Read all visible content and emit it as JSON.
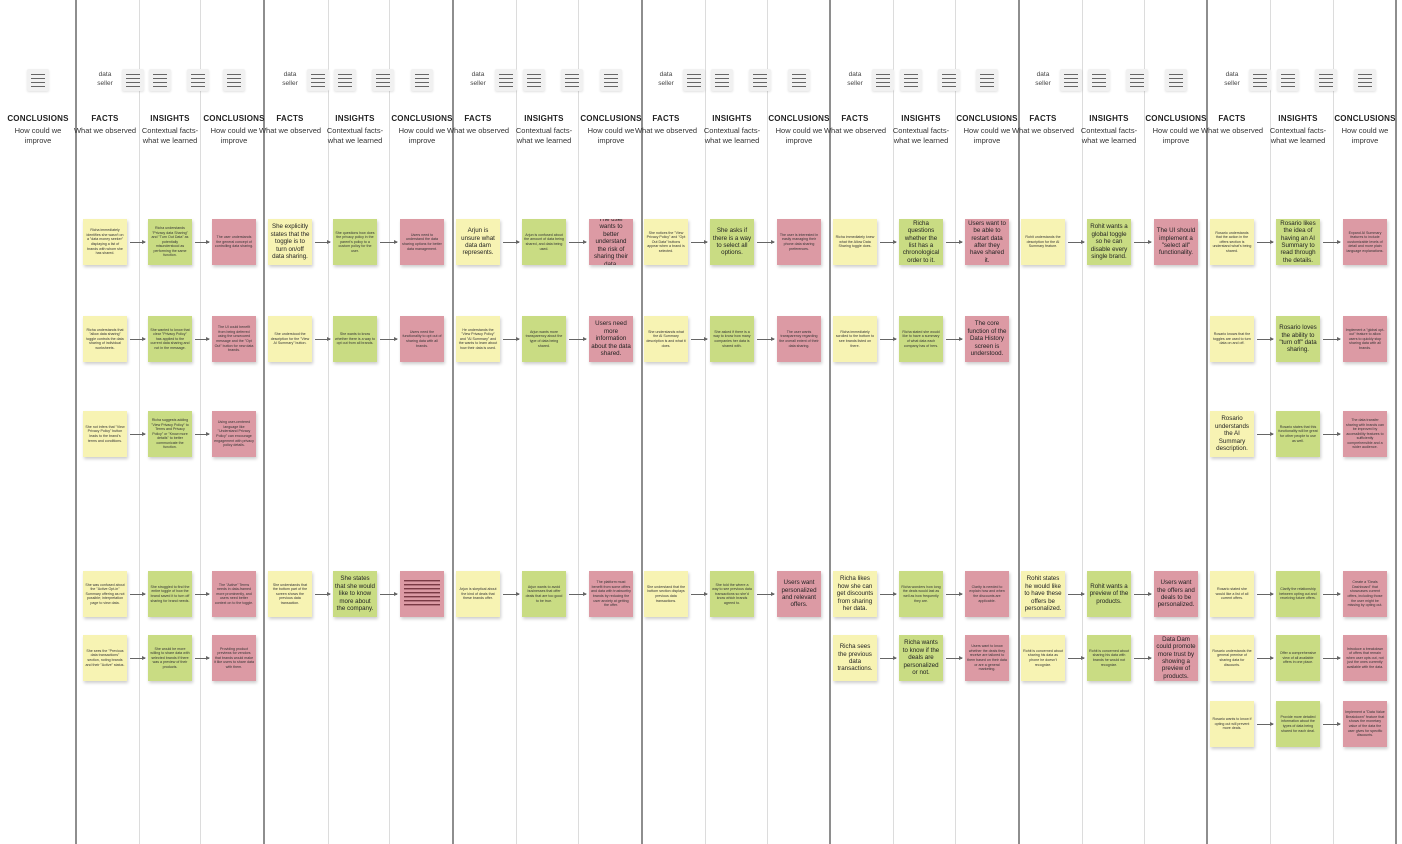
{
  "board": {
    "title": ""
  },
  "columns": [
    {
      "label": "CONCLUSIONS",
      "sub": "How could we improve"
    },
    {
      "label": "FACTS",
      "sub": "What we observed"
    },
    {
      "label": "INSIGHTS",
      "sub": "Contextual facts- what we learned"
    },
    {
      "label": "CONCLUSIONS",
      "sub": "How could we improve"
    },
    {
      "label": "FACTS",
      "sub": "What we observed"
    },
    {
      "label": "INSIGHTS",
      "sub": "Contextual facts- what we learned"
    },
    {
      "label": "CONCLUSIONS",
      "sub": "How could we improve"
    },
    {
      "label": "FACTS",
      "sub": "What we observed"
    },
    {
      "label": "INSIGHTS",
      "sub": "Contextual facts- what we learned"
    },
    {
      "label": "CONCLUSIONS",
      "sub": "How could we improve"
    },
    {
      "label": "FACTS",
      "sub": "What we observed"
    },
    {
      "label": "INSIGHTS",
      "sub": "Contextual facts- what we learned"
    },
    {
      "label": "CONCLUSIONS",
      "sub": "How could we improve"
    },
    {
      "label": "FACTS",
      "sub": "What we observed"
    },
    {
      "label": "INSIGHTS",
      "sub": "Contextual facts- what we learned"
    },
    {
      "label": "CONCLUSIONS",
      "sub": "How could we improve"
    },
    {
      "label": "FACTS",
      "sub": "What we observed"
    },
    {
      "label": "INSIGHTS",
      "sub": "Contextual facts- what we learned"
    },
    {
      "label": "CONCLUSIONS",
      "sub": "How could we improve"
    },
    {
      "label": "FACTS",
      "sub": "What we observed"
    },
    {
      "label": "INSIGHTS",
      "sub": "Contextual facts- what we learned"
    },
    {
      "label": "CONCLUSIONS",
      "sub": "How could we improve"
    }
  ],
  "persona_tag": "data seller",
  "sections": [
    {
      "notes": []
    },
    {
      "notes": [
        {
          "col": 1,
          "row": 0,
          "type": "fact",
          "text": "Richa immediately identifies she wasn't on a \"data money seeker\" displaying a list of brands with whom she has shared."
        },
        {
          "col": 2,
          "row": 0,
          "type": "insight",
          "text": "Richa understands \"Privacy data Sharing\" and \"Turn Out Data\" as potentially misunderstood as performing the same function."
        },
        {
          "col": 3,
          "row": 0,
          "type": "conclusion",
          "text": "The user understands the general concept of controlling data sharing."
        },
        {
          "col": 1,
          "row": 1,
          "type": "fact",
          "text": "Richa understands that \"allow data sharing\" toggle controls the data sharing of individual worksheets."
        },
        {
          "col": 2,
          "row": 1,
          "type": "insight",
          "text": "She wanted to know that clear \"Privacy Policy\" has applied to the current data sharing and not in the message."
        },
        {
          "col": 3,
          "row": 1,
          "type": "conclusion",
          "text": "The UI could benefit from being deferred using the unsecured message and the \"Opt Out\" button for new data brands."
        },
        {
          "col": 1,
          "row": 2,
          "type": "fact",
          "text": "She not infers that \"View Privacy Policy\" button leads to the brand's terms and conditions."
        },
        {
          "col": 2,
          "row": 2,
          "type": "insight",
          "text": "Richa suggests adding \"View Privacy Policy\" to Terms and Privacy Policy\" or \"Know more details\" to better communicate the function."
        },
        {
          "col": 3,
          "row": 2,
          "type": "conclusion",
          "text": "Using user-centered language like \"Understand Privacy Policy\" can encourage engagement with privacy policy details."
        },
        {
          "col": 1,
          "row": 3,
          "type": "fact",
          "text": "She was confused about the \"Active Opt-in\" Summary offering as not possible; interpretation page to view data."
        },
        {
          "col": 2,
          "row": 3,
          "type": "insight",
          "text": "She struggled to find the entire toggle of how the brand saved it to turn off sharing for brand needs."
        },
        {
          "col": 3,
          "row": 3,
          "type": "conclusion",
          "text": "The \"Active\" Terms needs in data-framed more prominently, and users need better context on to the toggle."
        },
        {
          "col": 1,
          "row": 4,
          "type": "fact",
          "text": "She sees the \"Previous data transactions\" section, noting brands and their \"Active\" status."
        },
        {
          "col": 2,
          "row": 4,
          "type": "insight",
          "text": "She would be more willing to share data with selected brands if there was a preview of their products."
        },
        {
          "col": 3,
          "row": 4,
          "type": "conclusion",
          "text": "Providing product previews for vendors that brands would make it like users to share data with them."
        }
      ]
    },
    {
      "notes": [
        {
          "col": 4,
          "row": 0,
          "type": "fact",
          "large": true,
          "text": "She explicitly states that the toggle is to turn on/off data sharing."
        },
        {
          "col": 5,
          "row": 0,
          "type": "insight",
          "text": "She questions how does the privacy policy in the parent's policy to a custom policy for the user."
        },
        {
          "col": 6,
          "row": 0,
          "type": "conclusion",
          "text": "Users need to understand the data sharing options for better data management."
        },
        {
          "col": 4,
          "row": 1,
          "type": "fact",
          "text": "She understood the description for the \"View AI Summary\" button."
        },
        {
          "col": 5,
          "row": 1,
          "type": "insight",
          "text": "She wants to know whether there is a way to opt out from all brands."
        },
        {
          "col": 6,
          "row": 1,
          "type": "conclusion",
          "text": "Users need the functionality to opt out of sharing data with all brands."
        },
        {
          "col": 4,
          "row": 3,
          "type": "fact",
          "text": "She understands that the bottom part of the screen shows the previous data transaction."
        },
        {
          "col": 5,
          "row": 3,
          "type": "insight",
          "large": true,
          "text": "She states that she would like to know more about the company."
        },
        {
          "col": 6,
          "row": 3,
          "type": "conclusion",
          "redacted": true,
          "text": "Users want to know more about the company."
        }
      ]
    },
    {
      "notes": [
        {
          "col": 7,
          "row": 0,
          "type": "fact",
          "large": true,
          "text": "Arjun is unsure what data dam represents."
        },
        {
          "col": 8,
          "row": 0,
          "type": "insight",
          "text": "Arjun is confused about the amount of data being shared, and data being used."
        },
        {
          "col": 9,
          "row": 0,
          "type": "conclusion",
          "large": true,
          "text": "The user wants to better understand the risk of sharing their data."
        },
        {
          "col": 7,
          "row": 1,
          "type": "fact",
          "text": "He understands the \"View Privacy Policy\" and \"AI Summary\" and the wants to learn about how their data is used."
        },
        {
          "col": 8,
          "row": 1,
          "type": "insight",
          "text": "Arjun wants more transparency about the type of data being shared."
        },
        {
          "col": 9,
          "row": 1,
          "type": "conclusion",
          "large": true,
          "text": "Users need more information about the data shared."
        },
        {
          "col": 7,
          "row": 3,
          "type": "fact",
          "text": "Arjun is skeptical about the kind of deals that these brands offer."
        },
        {
          "col": 8,
          "row": 3,
          "type": "insight",
          "text": "Arjun wants to avoid businesses that offer deals that are too good to be true."
        },
        {
          "col": 9,
          "row": 3,
          "type": "conclusion",
          "text": "The platform must benefit from some offers and data with trustworthy brands by reducing the user anxiety at getting the offer."
        }
      ]
    },
    {
      "notes": [
        {
          "col": 10,
          "row": 0,
          "type": "fact",
          "text": "She notices the \"View Privacy Policy\" and \"Opt Out Data\" buttons appear when a brand is selected."
        },
        {
          "col": 11,
          "row": 0,
          "type": "insight",
          "large": true,
          "text": "She asks if there is a way to select all options."
        },
        {
          "col": 12,
          "row": 0,
          "type": "conclusion",
          "text": "The user is interested in easily managing their phone data sharing preferences."
        },
        {
          "col": 10,
          "row": 1,
          "type": "fact",
          "text": "She understands what the AI Summary description is and what it does."
        },
        {
          "col": 11,
          "row": 1,
          "type": "insight",
          "text": "She asked if there is a way to know how many companies her data is shared with."
        },
        {
          "col": 12,
          "row": 1,
          "type": "conclusion",
          "text": "The user wants transparency regarding the overall extent of their data sharing."
        },
        {
          "col": 10,
          "row": 3,
          "type": "fact",
          "text": "She understand that the bottom section displays previous data transactions."
        },
        {
          "col": 11,
          "row": 3,
          "type": "insight",
          "text": "She told the where a way to see previous data transactions so she'd know which brands agreed to."
        },
        {
          "col": 12,
          "row": 3,
          "type": "conclusion",
          "large": true,
          "text": "Users want personalized and relevant offers."
        }
      ]
    },
    {
      "notes": [
        {
          "col": 13,
          "row": 0,
          "type": "fact",
          "text": "Richa immediately knew what the Allow Data Sharing toggle does."
        },
        {
          "col": 14,
          "row": 0,
          "type": "insight",
          "large": true,
          "text": "Richa questions whether the list has a chronological order to it."
        },
        {
          "col": 15,
          "row": 0,
          "type": "conclusion",
          "large": true,
          "text": "Users want to be able to restart data after they have shared it."
        },
        {
          "col": 13,
          "row": 1,
          "type": "fact",
          "text": "Richa immediately scrolled to the bottom to see brands listed on there."
        },
        {
          "col": 14,
          "row": 1,
          "type": "insight",
          "text": "Richa stated she would like to have a summary of what data each company has of hers."
        },
        {
          "col": 15,
          "row": 1,
          "type": "conclusion",
          "large": true,
          "text": "The core function of the Data History screen is understood."
        },
        {
          "col": 13,
          "row": 3,
          "type": "fact",
          "large": true,
          "text": "Richa likes how she can get discounts from sharing her data."
        },
        {
          "col": 14,
          "row": 3,
          "type": "insight",
          "text": "Richa wonders how long the deals would last as well as how frequently they are."
        },
        {
          "col": 15,
          "row": 3,
          "type": "conclusion",
          "text": "Clarity is needed to explain how and when the discounts are applicable."
        },
        {
          "col": 13,
          "row": 4,
          "type": "fact",
          "large": true,
          "text": "Richa sees the previous data transactions."
        },
        {
          "col": 14,
          "row": 4,
          "type": "insight",
          "large": true,
          "text": "Richa wants to know if the deals are personalized or not."
        },
        {
          "col": 15,
          "row": 4,
          "type": "conclusion",
          "text": "Users want to know whether the deals they receive are tailored to them based on their data or are a general marketing."
        }
      ]
    },
    {
      "notes": [
        {
          "col": 16,
          "row": 0,
          "type": "fact",
          "text": "Rohit understands the description for the AI Summary feature."
        },
        {
          "col": 17,
          "row": 0,
          "type": "insight",
          "large": true,
          "text": "Rohit wants a global toggle so he can disable every single brand."
        },
        {
          "col": 18,
          "row": 0,
          "type": "conclusion",
          "large": true,
          "text": "The UI should implement a \"select all\" functionality."
        },
        {
          "col": 16,
          "row": 3,
          "type": "fact",
          "large": true,
          "text": "Rohit states he would like to have these offers be personalized."
        },
        {
          "col": 17,
          "row": 3,
          "type": "insight",
          "large": true,
          "text": "Rohit wants a preview of the products."
        },
        {
          "col": 18,
          "row": 3,
          "type": "conclusion",
          "large": true,
          "text": "Users want the offers and deals to be personalized."
        },
        {
          "col": 16,
          "row": 4,
          "type": "fact",
          "text": "Rohit is concerned about sharing his data as phone he doesn't recognize."
        },
        {
          "col": 17,
          "row": 4,
          "type": "insight",
          "text": "Rohit is concerned about sharing his data with brands he would not recognize."
        },
        {
          "col": 18,
          "row": 4,
          "type": "conclusion",
          "large": true,
          "text": "Data Dam could promote more trust by showing a preview of products."
        }
      ]
    },
    {
      "notes": [
        {
          "col": 19,
          "row": 0,
          "type": "fact",
          "text": "Rosario understands that the action in the offers section is understand what's being shared."
        },
        {
          "col": 20,
          "row": 0,
          "type": "insight",
          "large": true,
          "text": "Rosario likes the idea of having an AI Summary to read through the details."
        },
        {
          "col": 21,
          "row": 0,
          "type": "conclusion",
          "text": "Expand AI Summary features to include customizable levels of detail and more plain language explanations."
        },
        {
          "col": 19,
          "row": 1,
          "type": "fact",
          "text": "Rosario knows that the toggles are used to turn data on and off."
        },
        {
          "col": 20,
          "row": 1,
          "type": "insight",
          "large": true,
          "text": "Rosario loves the ability to \"turn off\" data sharing."
        },
        {
          "col": 21,
          "row": 1,
          "type": "conclusion",
          "text": "Implement a \"global opt-out\" feature to allow users to quickly stop sharing data with all brands."
        },
        {
          "col": 19,
          "row": 2,
          "type": "fact",
          "large": true,
          "text": "Rosario understands the AI Summary description."
        },
        {
          "col": 20,
          "row": 2,
          "type": "insight",
          "text": "Rosario states that this functionality will be great for other people to use as well."
        },
        {
          "col": 21,
          "row": 2,
          "type": "conclusion",
          "text": "The data transfer sharing with brands can be improved by accessibility features to sufficiently comprehensible and a wider audience."
        },
        {
          "col": 19,
          "row": 3,
          "type": "fact",
          "text": "Rosario stated she would like a list of all current offers."
        },
        {
          "col": 20,
          "row": 3,
          "type": "insight",
          "text": "Clarify the relationship between opting out and receiving future offers."
        },
        {
          "col": 21,
          "row": 3,
          "type": "conclusion",
          "text": "Create a \"Deals Dashboard\" that showcases current offers, including those the user might be missing by opting out."
        },
        {
          "col": 19,
          "row": 4,
          "type": "fact",
          "text": "Rosario understands the general premise of sharing data for discounts."
        },
        {
          "col": 20,
          "row": 4,
          "type": "insight",
          "text": "Offer a comprehensive view of all available offers in one place."
        },
        {
          "col": 21,
          "row": 4,
          "type": "conclusion",
          "text": "Introduce a breakdown of offers that remain when user opts out, not just the ones currently available with the data."
        },
        {
          "col": 19,
          "row": 5,
          "type": "fact",
          "text": "Rosario wants to know if opting out will prevent more deals."
        },
        {
          "col": 20,
          "row": 5,
          "type": "insight",
          "text": "Provide more detailed information about the types of data being shared for each deal."
        },
        {
          "col": 21,
          "row": 5,
          "type": "conclusion",
          "text": "Implement a \"Data Value Breakdown\" feature that shows the monetary value of the data the user gives for specific discounts."
        }
      ]
    }
  ]
}
